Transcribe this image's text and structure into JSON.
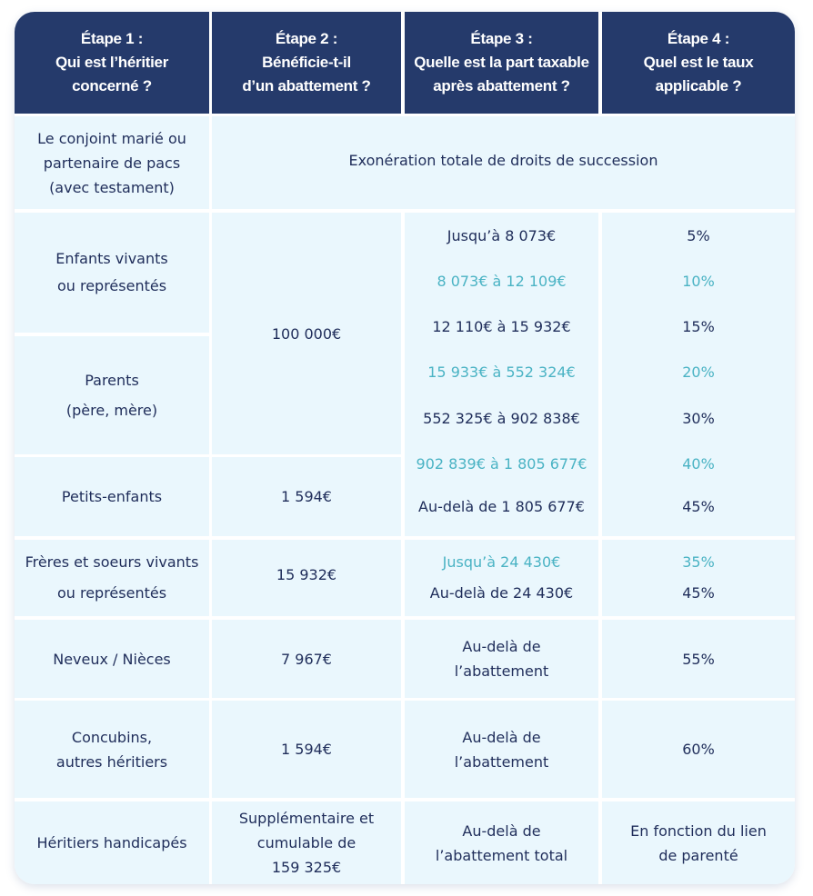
{
  "colors": {
    "header_bg": "#253a6b",
    "cell_bg": "#eaf7fd",
    "text": "#1f2d5a",
    "accent": "#4ab3c4"
  },
  "headers": [
    [
      "Étape 1 :",
      "Qui est l’héritier",
      "concerné ?"
    ],
    [
      "Étape 2 :",
      "Bénéficie-t-il",
      "d’un abattement ?"
    ],
    [
      "Étape 3 :",
      "Quelle est la part taxable",
      "après abattement ?"
    ],
    [
      "Étape 4 :",
      "Quel est le taux",
      "applicable ?"
    ]
  ],
  "conjoint": {
    "heir": [
      "Le conjoint marié ou",
      "partenaire de pacs",
      "(avec testament)"
    ],
    "note": "Exonération totale de droits de succession"
  },
  "direct": {
    "heirs": [
      [
        "Enfants vivants",
        "ou représentés"
      ],
      [
        "Parents",
        "(père, mère)"
      ],
      [
        "Petits-enfants"
      ]
    ],
    "allowances": [
      "100 000€",
      "1 594€"
    ],
    "brackets": [
      {
        "range": "Jusqu’à 8 073€",
        "rate": "5%"
      },
      {
        "range": "8 073€ à 12 109€",
        "rate": "10%"
      },
      {
        "range": "12 110€ à 15 932€",
        "rate": "15%"
      },
      {
        "range": "15 933€ à 552 324€",
        "rate": "20%"
      },
      {
        "range": "552 325€ à 902 838€",
        "rate": "30%"
      },
      {
        "range": "902 839€ à 1 805 677€",
        "rate": "40%"
      },
      {
        "range": "Au-delà de 1 805 677€",
        "rate": "45%"
      }
    ]
  },
  "siblings": {
    "heir": [
      "Frères et soeurs vivants",
      "ou représentés"
    ],
    "allowance": "15 932€",
    "brackets": [
      {
        "range": "Jusqu’à 24 430€",
        "rate": "35%"
      },
      {
        "range": "Au-delà de 24 430€",
        "rate": "45%"
      }
    ]
  },
  "nephews": {
    "heir": "Neveux / Nièces",
    "allowance": "7 967€",
    "part": [
      "Au-delà de",
      "l’abattement"
    ],
    "rate": "55%"
  },
  "others": {
    "heir": [
      "Concubins,",
      "autres héritiers"
    ],
    "allowance": "1 594€",
    "part": [
      "Au-delà de",
      "l’abattement"
    ],
    "rate": "60%"
  },
  "disabled": {
    "heir": "Héritiers handicapés",
    "allowance": [
      "Supplémentaire et",
      "cumulable de",
      "159 325€"
    ],
    "part": [
      "Au-delà de",
      "l’abattement total"
    ],
    "rate": [
      "En fonction du lien",
      "de parenté"
    ]
  }
}
